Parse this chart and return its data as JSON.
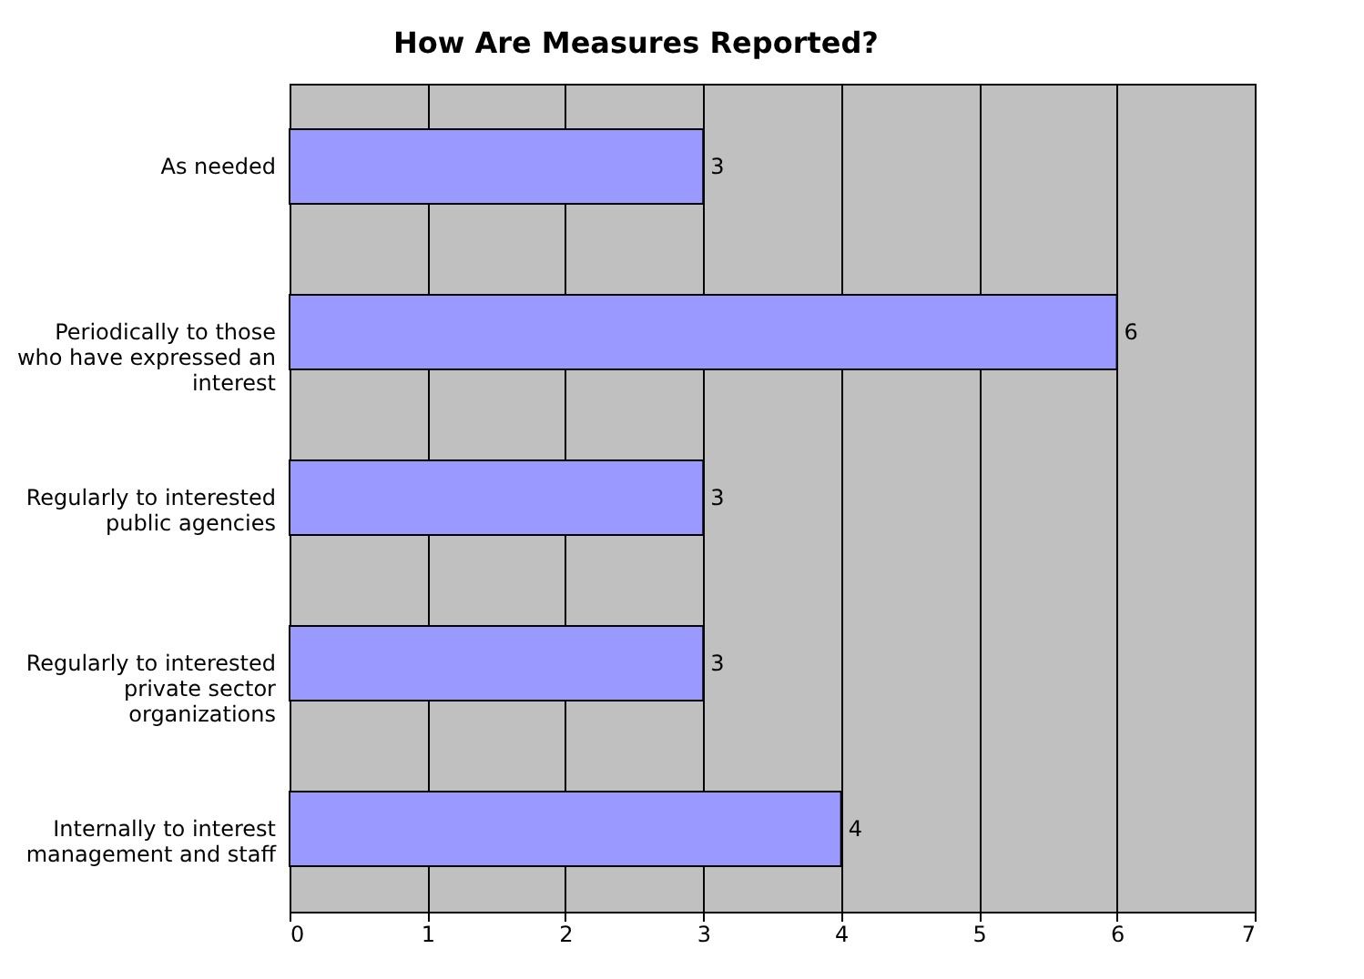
{
  "chart_data": {
    "type": "bar",
    "orientation": "horizontal",
    "title": "How Are Measures Reported?",
    "categories": [
      "As needed",
      "Periodically to those who have expressed an interest",
      "Regularly to interested public agencies",
      "Regularly to interested private sector organizations",
      "Internally to interest management and staff"
    ],
    "values": [
      3,
      6,
      3,
      3,
      4
    ],
    "color": "#9999ff",
    "data_labels": true,
    "xlim": [
      0,
      7
    ],
    "xticks": [
      0,
      1,
      2,
      3,
      4,
      5,
      6,
      7
    ],
    "grid": "x"
  }
}
